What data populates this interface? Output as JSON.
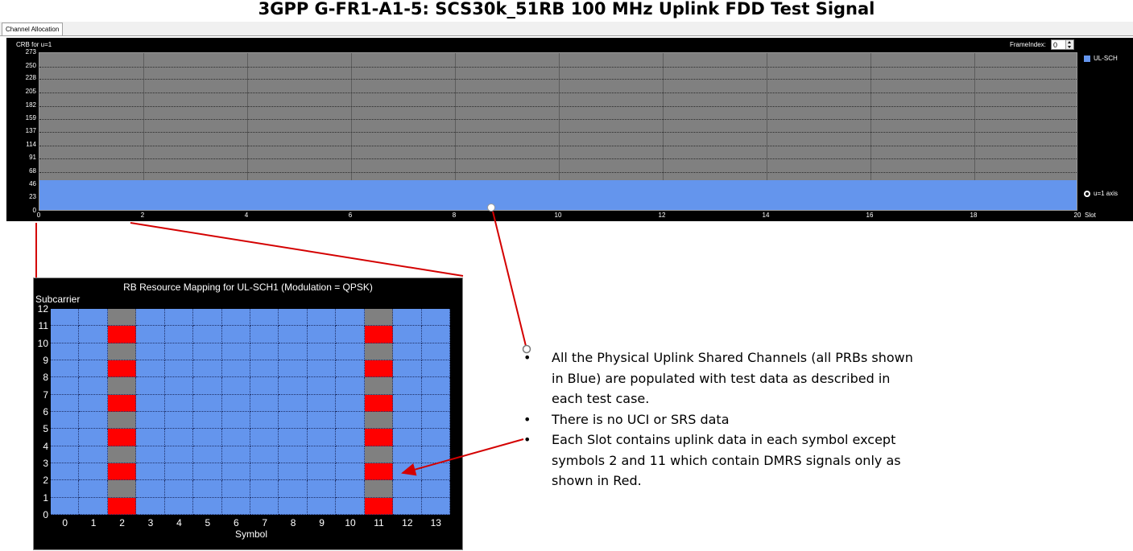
{
  "page_title": "3GPP G-FR1-A1-5: SCS30k_51RB 100 MHz Uplink FDD Test Signal",
  "tab": {
    "label": "Channel Allocation"
  },
  "channel_chart": {
    "ylabel": "CRB for u=1",
    "frame_index_label": "FrameIndex:",
    "frame_index_value": "0",
    "xlabel": "Slot",
    "legend_label": "UL-SCH",
    "radio_label": "u=1 axis",
    "colors": {
      "ul_sch": "#6495ed",
      "background": "#808080"
    }
  },
  "rb_chart": {
    "title": "RB Resource Mapping for UL-SCH1 (Modulation = QPSK)",
    "ylabel": "Subcarrier",
    "xlabel": "Symbol",
    "colors": {
      "ul_sch": "#6495ed",
      "dmrs": "#ff0000",
      "empty": "#808080"
    }
  },
  "chart_data": [
    {
      "type": "heatmap",
      "title": "",
      "ylabel": "CRB for u=1",
      "xlabel": "Slot",
      "x_ticks": [
        0,
        2,
        4,
        6,
        8,
        10,
        12,
        14,
        16,
        18,
        20
      ],
      "y_ticks": [
        0,
        23,
        46,
        68,
        91,
        114,
        137,
        159,
        182,
        205,
        228,
        250,
        273
      ],
      "xlim": [
        0,
        20
      ],
      "ylim": [
        0,
        273
      ],
      "series": [
        {
          "name": "UL-SCH",
          "crb_start": 0,
          "crb_count": 51,
          "slot_start": 0,
          "slot_end": 20
        }
      ],
      "legend": "top-right"
    },
    {
      "type": "heatmap",
      "title": "RB Resource Mapping for UL-SCH1 (Modulation = QPSK)",
      "xlabel": "Symbol",
      "ylabel": "Subcarrier",
      "x_ticks": [
        0,
        1,
        2,
        3,
        4,
        5,
        6,
        7,
        8,
        9,
        10,
        11,
        12,
        13
      ],
      "y_ticks": [
        0,
        1,
        2,
        3,
        4,
        5,
        6,
        7,
        8,
        9,
        10,
        11,
        12
      ],
      "xlim": [
        0,
        14
      ],
      "ylim": [
        0,
        12
      ],
      "dmrs_symbols": [
        2,
        11
      ],
      "dmrs_subcarriers": [
        0,
        2,
        4,
        6,
        8,
        10
      ],
      "empty_subcarriers_on_dmrs_symbols": [
        1,
        3,
        5,
        7,
        9,
        11
      ]
    }
  ],
  "notes": [
    "All the Physical Uplink Shared Channels (all PRBs shown in Blue) are populated with test data as described in each test case.",
    "There is no UCI or SRS data",
    "Each Slot contains uplink data in each symbol except symbols 2 and 11 which contain DMRS signals only as shown in Red."
  ]
}
